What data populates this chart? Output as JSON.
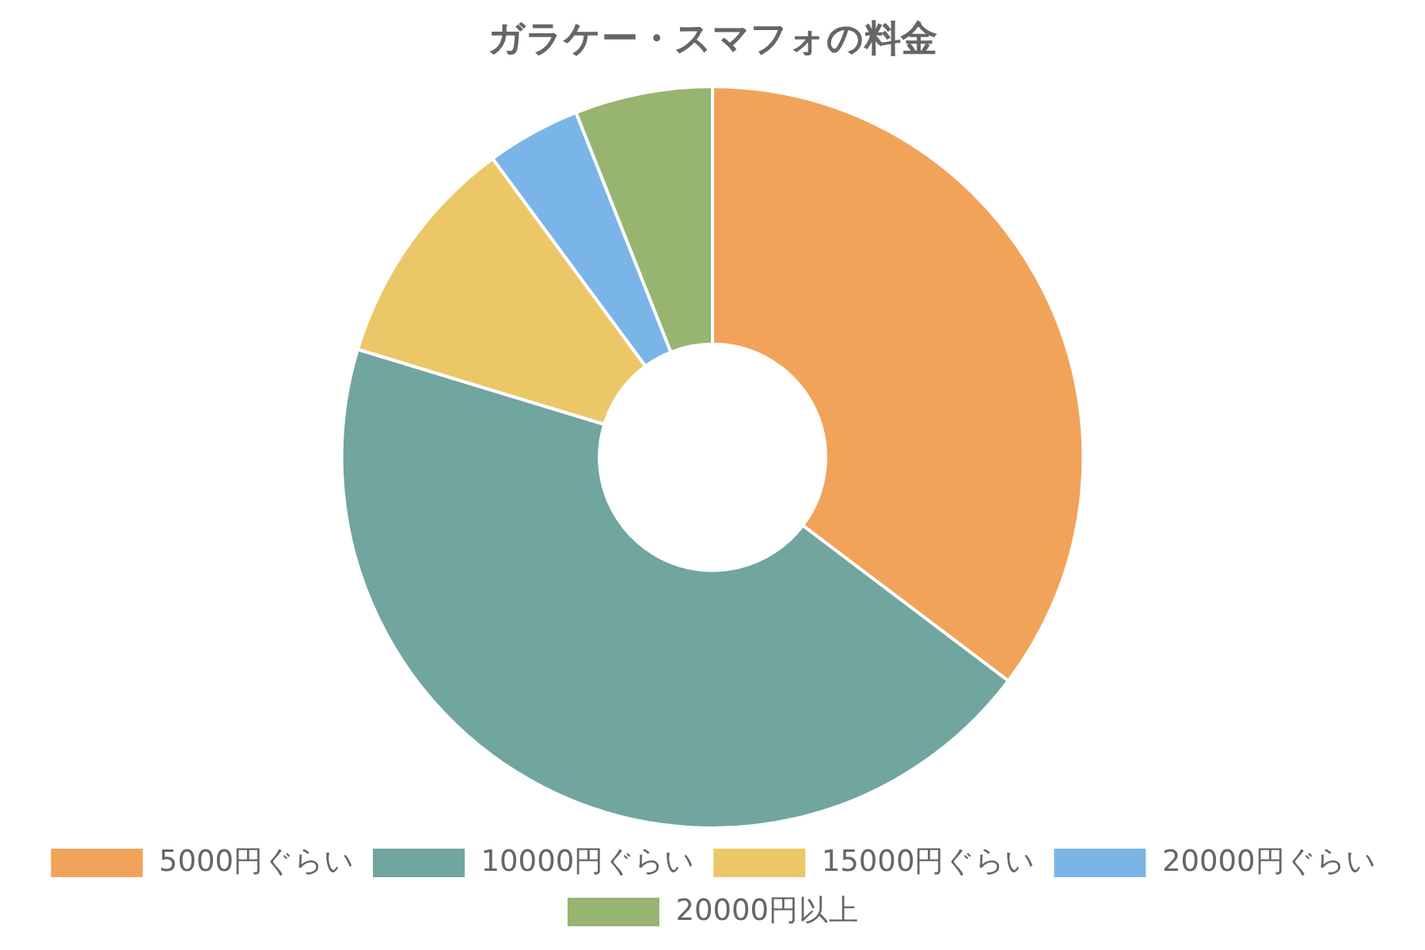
{
  "chart_data": {
    "type": "donut",
    "title": "ガラケー・スマフォの料金",
    "categories": [
      "5000円ぐらい",
      "10000円ぐらい",
      "15000円ぐらい",
      "20000円ぐらい",
      "20000円以上"
    ],
    "values": [
      35.3,
      44.4,
      10.2,
      4.1,
      6.0
    ],
    "colors": [
      "#f1a35a",
      "#71a59f",
      "#ecc768",
      "#7ab5e7",
      "#97b471"
    ],
    "legend": "bottom"
  }
}
